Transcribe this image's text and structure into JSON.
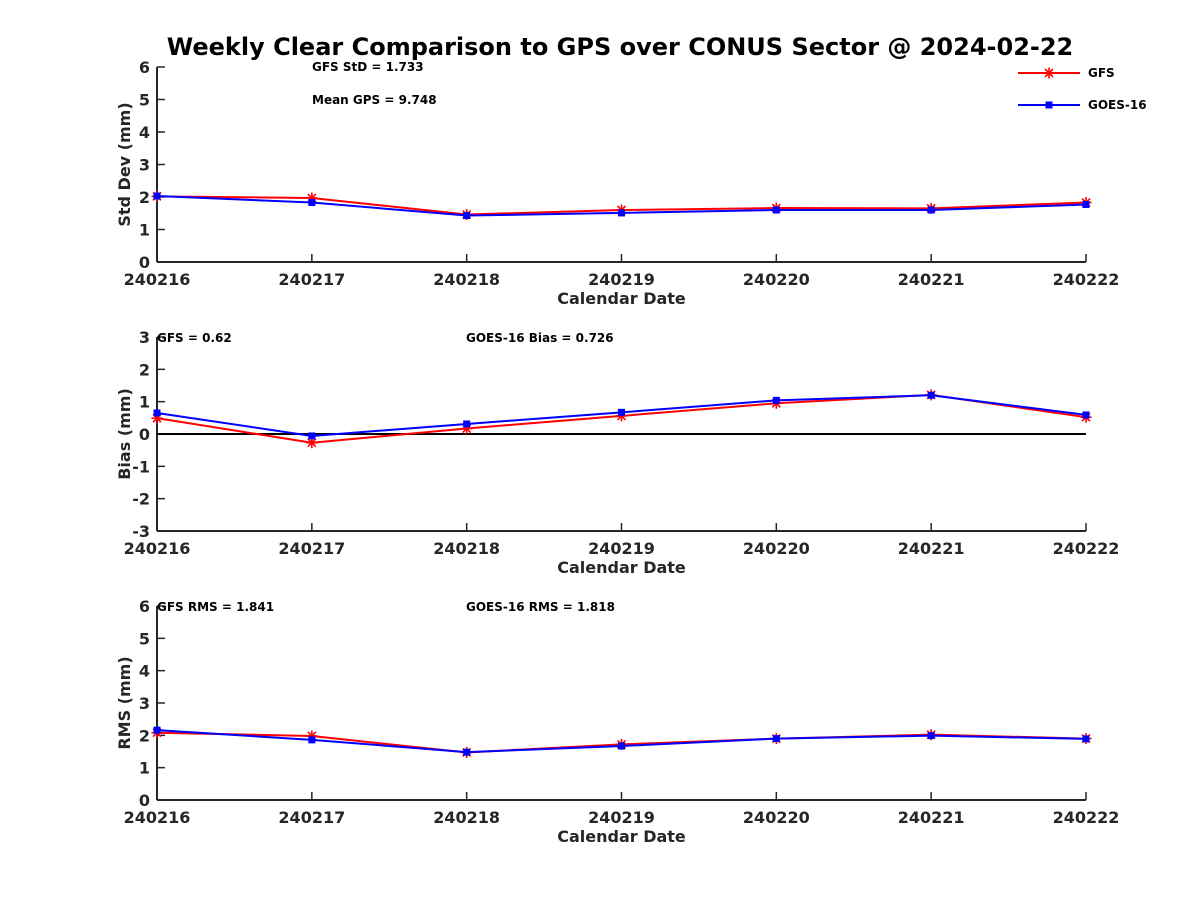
{
  "figure_title": "Weekly Clear Comparison to GPS over CONUS Sector @ 2024-02-22",
  "colors": {
    "GFS": "#ff0000",
    "GOES-16": "#0000ff",
    "axis": "#262626",
    "zero_line": "#000000"
  },
  "legend": {
    "placement": "top-right",
    "entries": [
      "GFS",
      "GOES-16"
    ],
    "markers": {
      "GFS": "asterisk",
      "GOES-16": "square"
    }
  },
  "chart_data": [
    {
      "type": "line",
      "xlabel": "Calendar Date",
      "ylabel": "Std Dev (mm)",
      "categories": [
        "240216",
        "240217",
        "240218",
        "240219",
        "240220",
        "240221",
        "240222"
      ],
      "ylim": [
        0,
        6
      ],
      "yticks": [
        "0",
        "1",
        "2",
        "3",
        "4",
        "5",
        "6"
      ],
      "zero_line": false,
      "annotations": [
        "GFS StD = 1.733",
        "Mean GPS = 9.748"
      ],
      "series": [
        {
          "name": "GFS",
          "values": [
            2.02,
            1.97,
            1.46,
            1.6,
            1.66,
            1.65,
            1.83
          ]
        },
        {
          "name": "GOES-16",
          "values": [
            2.03,
            1.83,
            1.43,
            1.51,
            1.6,
            1.6,
            1.77
          ]
        }
      ]
    },
    {
      "type": "line",
      "xlabel": "Calendar Date",
      "ylabel": "Bias (mm)",
      "categories": [
        "240216",
        "240217",
        "240218",
        "240219",
        "240220",
        "240221",
        "240222"
      ],
      "ylim": [
        -3,
        3
      ],
      "yticks": [
        "-3",
        "-2",
        "-1",
        "0",
        "1",
        "2",
        "3"
      ],
      "zero_line": true,
      "annotations": [
        "GFS = 0.62",
        "GOES-16 Bias  = 0.726"
      ],
      "series": [
        {
          "name": "GFS",
          "values": [
            0.49,
            -0.27,
            0.17,
            0.56,
            0.95,
            1.21,
            0.52
          ]
        },
        {
          "name": "GOES-16",
          "values": [
            0.65,
            -0.06,
            0.31,
            0.67,
            1.04,
            1.2,
            0.59
          ]
        }
      ]
    },
    {
      "type": "line",
      "xlabel": "Calendar Date",
      "ylabel": "RMS (mm)",
      "categories": [
        "240216",
        "240217",
        "240218",
        "240219",
        "240220",
        "240221",
        "240222"
      ],
      "ylim": [
        0,
        6
      ],
      "yticks": [
        "0",
        "1",
        "2",
        "3",
        "4",
        "5",
        "6"
      ],
      "zero_line": false,
      "annotations": [
        "GFS RMS = 1.841",
        "GOES-16 RMS = 1.818"
      ],
      "series": [
        {
          "name": "GFS",
          "values": [
            2.08,
            1.98,
            1.47,
            1.72,
            1.9,
            2.02,
            1.9
          ]
        },
        {
          "name": "GOES-16",
          "values": [
            2.16,
            1.86,
            1.48,
            1.67,
            1.9,
            1.99,
            1.89
          ]
        }
      ]
    }
  ]
}
